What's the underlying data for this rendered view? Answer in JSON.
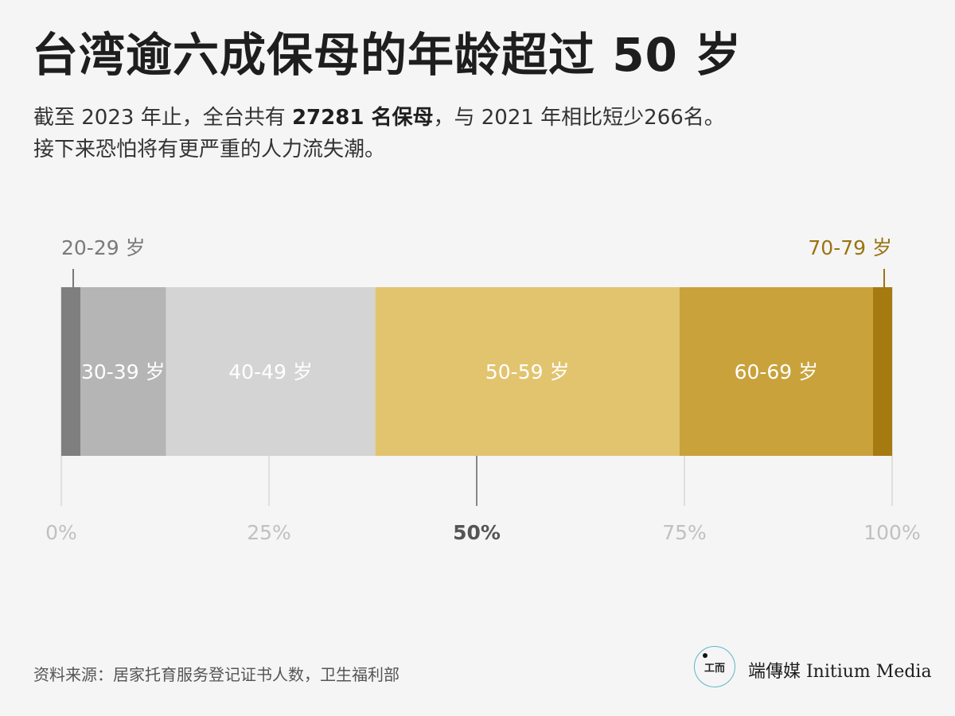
{
  "header": {
    "title": "台湾逾六成保母的年龄超过 50 岁",
    "subtitle_line1_a": "截至 2023 年止，全台共有 ",
    "subtitle_line1_bold": "27281 名保母",
    "subtitle_line1_b": "，与 2021 年相比短少266名。",
    "subtitle_line2": "接下来恐怕将有更严重的人力流失潮。"
  },
  "chart_data": {
    "type": "bar",
    "stacked": true,
    "orientation": "horizontal",
    "categories": [
      "20-29 岁",
      "30-39 岁",
      "40-49 岁",
      "50-59 岁",
      "60-69 岁",
      "70-79 岁"
    ],
    "values": [
      2.3,
      10.3,
      25.2,
      36.6,
      23.3,
      2.3
    ],
    "colors": [
      "#7f7f7f",
      "#b5b5b5",
      "#d4d4d4",
      "#e2c46f",
      "#c9a23c",
      "#a57a10"
    ],
    "label_colors": [
      "#7a7a7a",
      "#ffffff",
      "#ffffff",
      "#ffffff",
      "#ffffff",
      "#9a7413"
    ],
    "ticks": [
      "0%",
      "25%",
      "50%",
      "75%",
      "100%"
    ],
    "tick_values": [
      0,
      25,
      50,
      75,
      100
    ],
    "highlight_tick": "50%",
    "xlim": [
      0,
      100
    ]
  },
  "footer": {
    "source": "资料来源：居家托育服务登记证书人数，卫生福利部",
    "logo_text": "工而",
    "brand": "端傳媒 Initium Media"
  }
}
